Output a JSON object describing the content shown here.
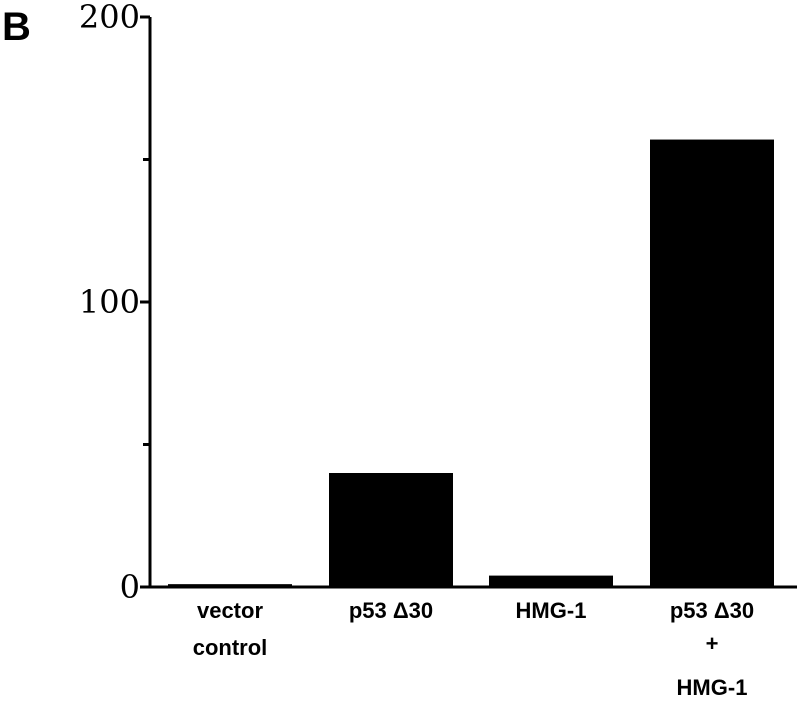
{
  "panel_label": "B",
  "chart_data": {
    "type": "bar",
    "title": "",
    "xlabel": "",
    "ylabel": "",
    "ylim": [
      0,
      200
    ],
    "yticks": [
      0,
      100,
      200
    ],
    "minor_yticks": [
      50,
      150
    ],
    "categories": [
      [
        "vector",
        "control"
      ],
      [
        "p53 Δ30"
      ],
      [
        "HMG-1"
      ],
      [
        "p53 Δ30",
        "+",
        "HMG-1"
      ]
    ],
    "values": [
      1,
      40,
      4,
      157
    ],
    "bar_color": "#000000",
    "grid": false,
    "legend": "none"
  }
}
